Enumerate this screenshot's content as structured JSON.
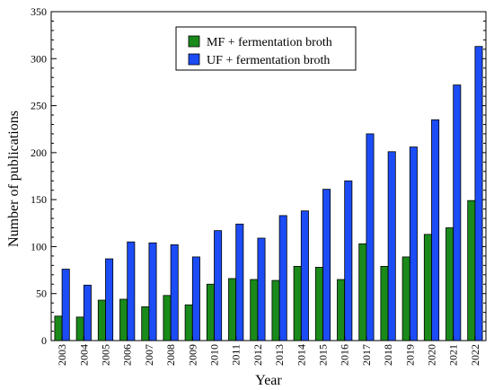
{
  "chart_data": {
    "type": "bar",
    "xlabel": "Year",
    "ylabel": "Number of publications",
    "ylim": [
      0,
      350
    ],
    "yticks": [
      0,
      50,
      100,
      150,
      200,
      250,
      300,
      350
    ],
    "legend_position": "top-center",
    "grid": false,
    "categories": [
      "2003",
      "2004",
      "2005",
      "2006",
      "2007",
      "2008",
      "2009",
      "2010",
      "2011",
      "2012",
      "2013",
      "2014",
      "2015",
      "2016",
      "2017",
      "2018",
      "2019",
      "2020",
      "2021",
      "2022"
    ],
    "series": [
      {
        "name": "MF + fermentation broth",
        "color": "#1a8a1a",
        "values": [
          26,
          25,
          43,
          44,
          36,
          48,
          38,
          60,
          66,
          65,
          64,
          79,
          78,
          65,
          103,
          79,
          89,
          113,
          120,
          149
        ]
      },
      {
        "name": "UF + fermentation broth",
        "color": "#1c4cf5",
        "values": [
          76,
          59,
          87,
          105,
          104,
          102,
          89,
          117,
          124,
          109,
          133,
          138,
          161,
          170,
          220,
          201,
          206,
          235,
          272,
          313
        ]
      }
    ]
  }
}
